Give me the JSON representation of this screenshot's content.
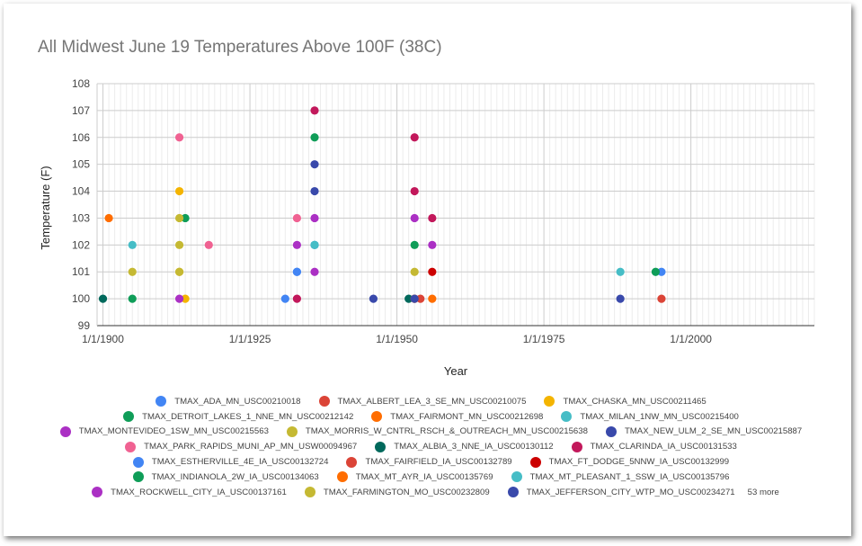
{
  "chart_data": {
    "type": "scatter",
    "title": "All Midwest June 19 Temperatures Above 100F (38C)",
    "xlabel": "Year",
    "ylabel": "Temperature (F)",
    "xlim": [
      1899,
      2021
    ],
    "ylim": [
      99,
      108
    ],
    "x_tick_labels": [
      "1/1/1900",
      "1/1/1925",
      "1/1/1950",
      "1/1/1975",
      "1/1/2000"
    ],
    "x_ticks": [
      1900,
      1925,
      1950,
      1975,
      2000
    ],
    "y_ticks": [
      99,
      100,
      101,
      102,
      103,
      104,
      105,
      106,
      107,
      108
    ],
    "grid": true,
    "legend_position": "bottom",
    "legend_more": "53 more",
    "series": [
      {
        "name": "TMAX_ADA_MN_USC00210018",
        "color": "#4285f4",
        "points": [
          [
            1933,
            101
          ],
          [
            1931,
            100
          ],
          [
            1995,
            101
          ]
        ]
      },
      {
        "name": "TMAX_ALBERT_LEA_3_SE_MN_USC00210075",
        "color": "#db4437",
        "points": [
          [
            1995,
            100
          ],
          [
            1954,
            100
          ]
        ]
      },
      {
        "name": "TMAX_CHASKA_MN_USC00211465",
        "color": "#f4b400",
        "points": [
          [
            1913,
            104
          ],
          [
            1913,
            101
          ],
          [
            1914,
            100
          ]
        ]
      },
      {
        "name": "TMAX_DETROIT_LAKES_1_NNE_MN_USC00212142",
        "color": "#0f9d58",
        "points": [
          [
            1914,
            103
          ],
          [
            1905,
            100
          ],
          [
            1953,
            102
          ]
        ]
      },
      {
        "name": "TMAX_FAIRMONT_MN_USC00212698",
        "color": "#ff6d00",
        "points": [
          [
            1901,
            103
          ],
          [
            1956,
            100
          ]
        ]
      },
      {
        "name": "TMAX_MILAN_1NW_MN_USC00215400",
        "color": "#46bdc6",
        "points": [
          [
            1905,
            102
          ],
          [
            1936,
            102
          ],
          [
            1988,
            101
          ]
        ]
      },
      {
        "name": "TMAX_MONTEVIDEO_1SW_MN_USC00215563",
        "color": "#ab30c4",
        "points": [
          [
            1933,
            102
          ],
          [
            1936,
            103
          ],
          [
            1953,
            103
          ]
        ]
      },
      {
        "name": "TMAX_MORRIS_W_CNTRL_RSCH_&_OUTREACH_MN_USC00215638",
        "color": "#c5b933",
        "points": [
          [
            1905,
            101
          ],
          [
            1913,
            103
          ],
          [
            1913,
            102
          ],
          [
            1953,
            101
          ]
        ]
      },
      {
        "name": "TMAX_NEW_ULM_2_SE_MN_USC00215887",
        "color": "#3949ab",
        "points": [
          [
            1936,
            105
          ],
          [
            1936,
            104
          ],
          [
            1946,
            100
          ],
          [
            1988,
            100
          ]
        ]
      },
      {
        "name": "TMAX_PARK_RAPIDS_MUNI_AP_MN_USW00094967",
        "color": "#f06292",
        "points": [
          [
            1913,
            106
          ],
          [
            1918,
            102
          ],
          [
            1933,
            103
          ]
        ]
      },
      {
        "name": "TMAX_ALBIA_3_NNE_IA_USC00130112",
        "color": "#00695c",
        "points": [
          [
            1900,
            100
          ],
          [
            1952,
            100
          ]
        ]
      },
      {
        "name": "TMAX_CLARINDA_IA_USC00131533",
        "color": "#c2185b",
        "points": [
          [
            1936,
            107
          ],
          [
            1953,
            106
          ],
          [
            1953,
            104
          ],
          [
            1956,
            103
          ],
          [
            1933,
            100
          ]
        ]
      },
      {
        "name": "TMAX_ESTHERVILLE_4E_IA_USC00132724",
        "color": "#4285f4",
        "points": [
          [
            1933,
            101
          ],
          [
            1936,
            102
          ]
        ]
      },
      {
        "name": "TMAX_FAIRFIELD_IA_USC00132789",
        "color": "#db4437",
        "points": [
          [
            1953,
            100
          ]
        ]
      },
      {
        "name": "TMAX_FT_DODGE_5NNW_IA_USC00132999",
        "color": "#cc0000",
        "points": [
          [
            1956,
            101
          ]
        ]
      },
      {
        "name": "TMAX_INDIANOLA_2W_IA_USC00134063",
        "color": "#0f9d58",
        "points": [
          [
            1936,
            106
          ],
          [
            1994,
            101
          ]
        ]
      },
      {
        "name": "TMAX_MT_AYR_IA_USC00135769",
        "color": "#ff6d00",
        "points": [
          [
            1953,
            100
          ]
        ]
      },
      {
        "name": "TMAX_MT_PLEASANT_1_SSW_IA_USC00135796",
        "color": "#46bdc6",
        "points": [
          [
            1936,
            102
          ]
        ]
      },
      {
        "name": "TMAX_ROCKWELL_CITY_IA_USC00137161",
        "color": "#ab30c4",
        "points": [
          [
            1913,
            100
          ],
          [
            1936,
            101
          ],
          [
            1956,
            102
          ]
        ]
      },
      {
        "name": "TMAX_FARMINGTON_MO_USC00232809",
        "color": "#c5b933",
        "points": [
          [
            1913,
            101
          ]
        ]
      },
      {
        "name": "TMAX_JEFFERSON_CITY_WTP_MO_USC00234271",
        "color": "#3949ab",
        "points": [
          [
            1953,
            100
          ]
        ]
      }
    ]
  }
}
